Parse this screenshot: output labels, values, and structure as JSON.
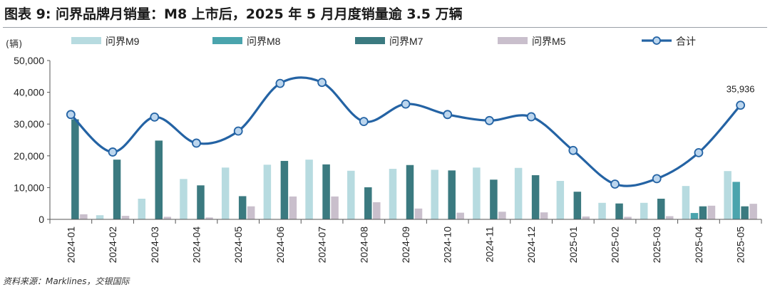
{
  "title": "图表 9: 问界品牌月销量：M8 上市后，2025 年 5 月月度销量逾 3.5 万辆",
  "source": "资料来源：Marklines，交银国际",
  "colors": {
    "M9": "#b7dbe0",
    "M8": "#4aa4ad",
    "M7": "#3b7a80",
    "M5": "#c9bfcc",
    "total": "#2463a4",
    "marker_fill": "#bcd6ee"
  },
  "chart_data": {
    "type": "bar",
    "unit_label": "(辆)",
    "categories": [
      "2024-01",
      "2024-02",
      "2024-03",
      "2024-04",
      "2024-05",
      "2024-06",
      "2024-07",
      "2024-08",
      "2024-09",
      "2024-10",
      "2024-11",
      "2024-12",
      "2025-01",
      "2025-02",
      "2025-03",
      "2025-04",
      "2025-05"
    ],
    "ylim": [
      0,
      50000
    ],
    "yticks": [
      0,
      10000,
      20000,
      30000,
      40000,
      50000
    ],
    "ytick_labels": [
      "0",
      "10,000",
      "20,000",
      "30,000",
      "40,000",
      "50,000"
    ],
    "series": [
      {
        "name": "问界M9",
        "type": "bar",
        "values": [
          0,
          1300,
          6500,
          12700,
          16300,
          17200,
          18800,
          15300,
          15900,
          15600,
          16300,
          16200,
          12100,
          5200,
          5200,
          10500,
          15200
        ]
      },
      {
        "name": "问界M8",
        "type": "bar",
        "values": [
          0,
          0,
          0,
          0,
          0,
          0,
          0,
          0,
          0,
          0,
          0,
          0,
          0,
          0,
          0,
          2000,
          11800
        ]
      },
      {
        "name": "问界M7",
        "type": "bar",
        "values": [
          31500,
          18800,
          24800,
          10700,
          7300,
          18400,
          17300,
          10100,
          17100,
          15400,
          12500,
          13900,
          8700,
          5000,
          6500,
          4100,
          4100
        ]
      },
      {
        "name": "问界M5",
        "type": "bar",
        "values": [
          1600,
          1100,
          800,
          600,
          4100,
          7200,
          7200,
          5400,
          3400,
          2100,
          2400,
          2200,
          900,
          800,
          1000,
          4300,
          4900
        ]
      },
      {
        "name": "合计",
        "type": "line",
        "smooth": true,
        "values": [
          33000,
          21200,
          32200,
          24000,
          27800,
          42800,
          43100,
          30800,
          36300,
          33000,
          31100,
          32300,
          21700,
          11100,
          12800,
          21000,
          35936
        ]
      }
    ],
    "annotations": [
      {
        "category": "2025-05",
        "series": "合计",
        "text": "35,936"
      }
    ],
    "legend_position": "top",
    "grid": false
  }
}
